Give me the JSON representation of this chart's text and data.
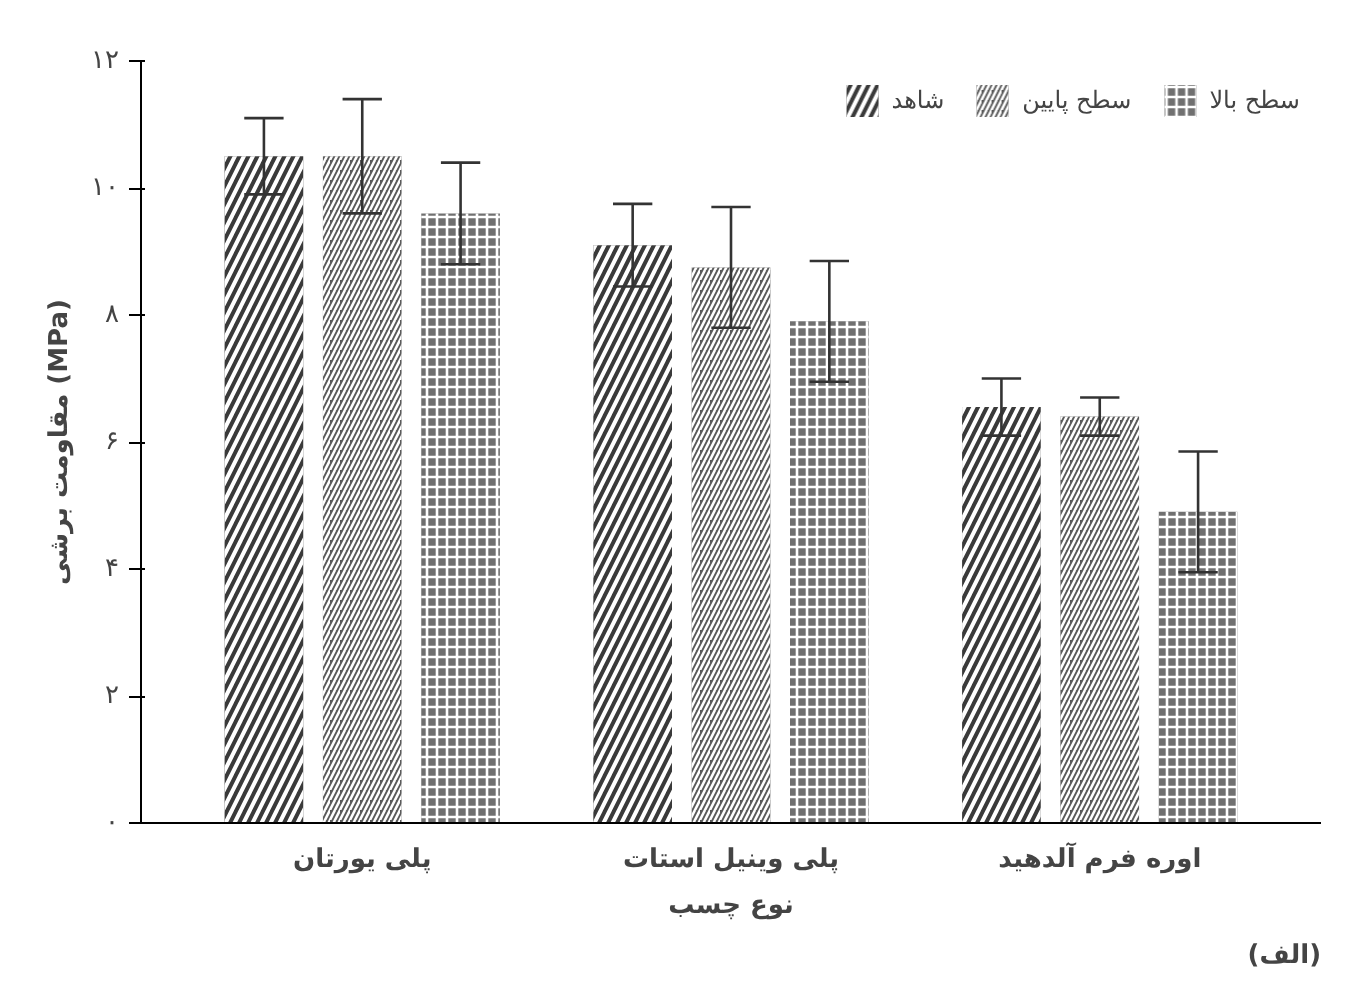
{
  "chart_data": {
    "type": "bar",
    "xlabel": "نوع چسب",
    "ylabel": "مقاومت برشی (MPa)",
    "categories": [
      "پلی یورتان",
      "پلی وینیل استات",
      "اوره فرم آلدهید"
    ],
    "series": [
      {
        "name": "شاهد",
        "color": "#3a3a3a",
        "values": [
          10.5,
          9.1,
          6.55
        ],
        "errors": [
          0.6,
          0.65,
          0.45
        ]
      },
      {
        "name": "سطح پایین",
        "color": "#5a5a5a",
        "values": [
          10.5,
          8.75,
          6.4
        ],
        "errors": [
          0.9,
          0.95,
          0.3
        ]
      },
      {
        "name": "سطح بالا",
        "color": "#707070",
        "values": [
          9.6,
          7.9,
          4.9
        ],
        "errors": [
          0.8,
          0.95,
          0.95
        ]
      }
    ],
    "ylim": [
      0,
      12
    ],
    "yticks": [
      {
        "value": 0,
        "label": "۰"
      },
      {
        "value": 2,
        "label": "۲"
      },
      {
        "value": 4,
        "label": "۴"
      },
      {
        "value": 6,
        "label": "۶"
      },
      {
        "value": 8,
        "label": "۸"
      },
      {
        "value": 10,
        "label": "۱۰"
      },
      {
        "value": 12,
        "label": "۱۲"
      }
    ],
    "grid": false,
    "legend": "top right",
    "annotations": [
      "(الف)"
    ]
  }
}
